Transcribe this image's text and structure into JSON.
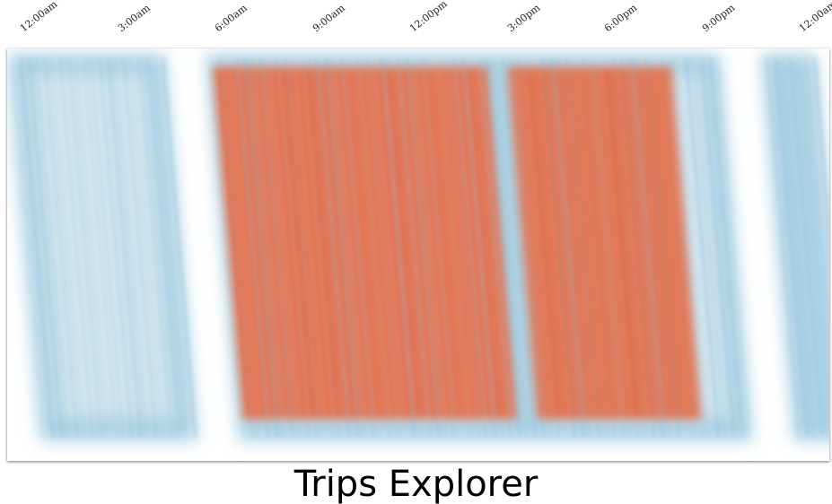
{
  "app": {
    "title": "Trips Explorer"
  },
  "colors": {
    "background": "#ffffff",
    "low": "#9ecae1",
    "high": "#e8714a"
  },
  "chart_data": {
    "type": "heatmap",
    "title": "Trips Explorer",
    "x_axis": {
      "position": "top",
      "tick_labels": [
        "12:00am",
        "3:00am",
        "6:00am",
        "9:00am",
        "12:00pm",
        "3:00pm",
        "6:00pm",
        "9:00pm",
        "12:00am"
      ],
      "range_hours": [
        0,
        24
      ]
    },
    "bands": [
      {
        "start_hour": 0.0,
        "end_hour": 4.6,
        "intensity": "low"
      },
      {
        "start_hour": 5.8,
        "end_hour": 14.3,
        "intensity": "low"
      },
      {
        "start_hour": 14.3,
        "end_hour": 20.8,
        "intensity": "low"
      },
      {
        "start_hour": 6.0,
        "end_hour": 8.6,
        "intensity": "high"
      },
      {
        "start_hour": 8.6,
        "end_hour": 14.0,
        "intensity": "high"
      },
      {
        "start_hour": 14.6,
        "end_hour": 16.4,
        "intensity": "high"
      },
      {
        "start_hour": 16.4,
        "end_hour": 19.4,
        "intensity": "high"
      },
      {
        "start_hour": 22.0,
        "end_hour": 23.6,
        "intensity": "low"
      }
    ],
    "grid": false,
    "legend": "none"
  }
}
